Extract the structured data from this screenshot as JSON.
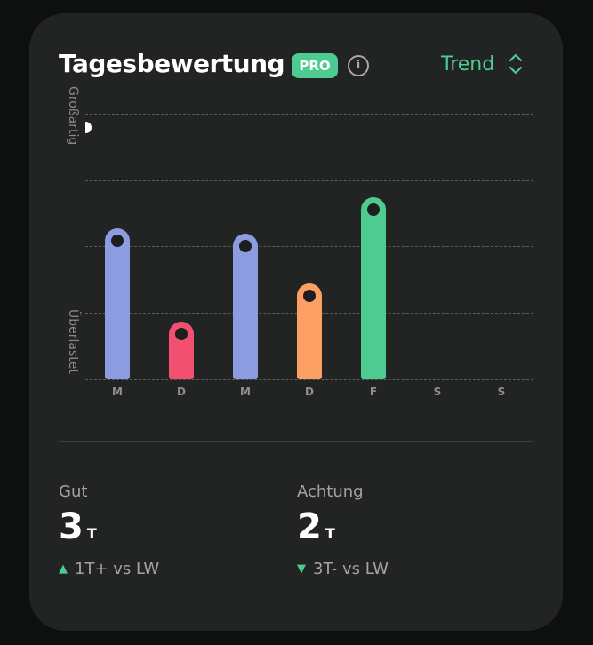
{
  "header": {
    "title": "Tagesbewertung",
    "badge": "PRO",
    "info_icon": "info-icon",
    "view_selector": "Trend",
    "view_selector_icon": "chevron-up-down-icon"
  },
  "y_axis": {
    "top_label": "Großartig",
    "bottom_label": "Überlastet"
  },
  "colors": {
    "accent": "#4ecb91",
    "blue": "#8b9ce0",
    "red": "#f25070",
    "orange": "#fb9f62",
    "green": "#4ecb91",
    "card": "#222323",
    "background": "#0e0f0f"
  },
  "days": [
    "M",
    "D",
    "M",
    "D",
    "F",
    "S",
    "S"
  ],
  "stats": [
    {
      "label": "Gut",
      "value": "3",
      "unit": "T",
      "delta_dir": "up",
      "delta_symbol": "▲",
      "delta": "1T+ vs LW"
    },
    {
      "label": "Achtung",
      "value": "2",
      "unit": "T",
      "delta_dir": "down",
      "delta_symbol": "▼",
      "delta": "3T- vs LW"
    }
  ],
  "chart_data": {
    "type": "bar",
    "title": "Tagesbewertung",
    "xlabel": "",
    "ylabel": "",
    "categories": [
      "M",
      "D",
      "M",
      "D",
      "F",
      "S",
      "S"
    ],
    "values": [
      2.27,
      0.87,
      2.19,
      1.44,
      2.74,
      null,
      null
    ],
    "bar_colors": [
      "#8b9ce0",
      "#f25070",
      "#8b9ce0",
      "#fb9f62",
      "#4ecb91",
      null,
      null
    ],
    "ylim": [
      0,
      4
    ],
    "y_tick_labels": {
      "top": "Großartig",
      "bottom": "Überlastet"
    },
    "grid": true,
    "grid_style": "dashed",
    "legend": "none"
  }
}
